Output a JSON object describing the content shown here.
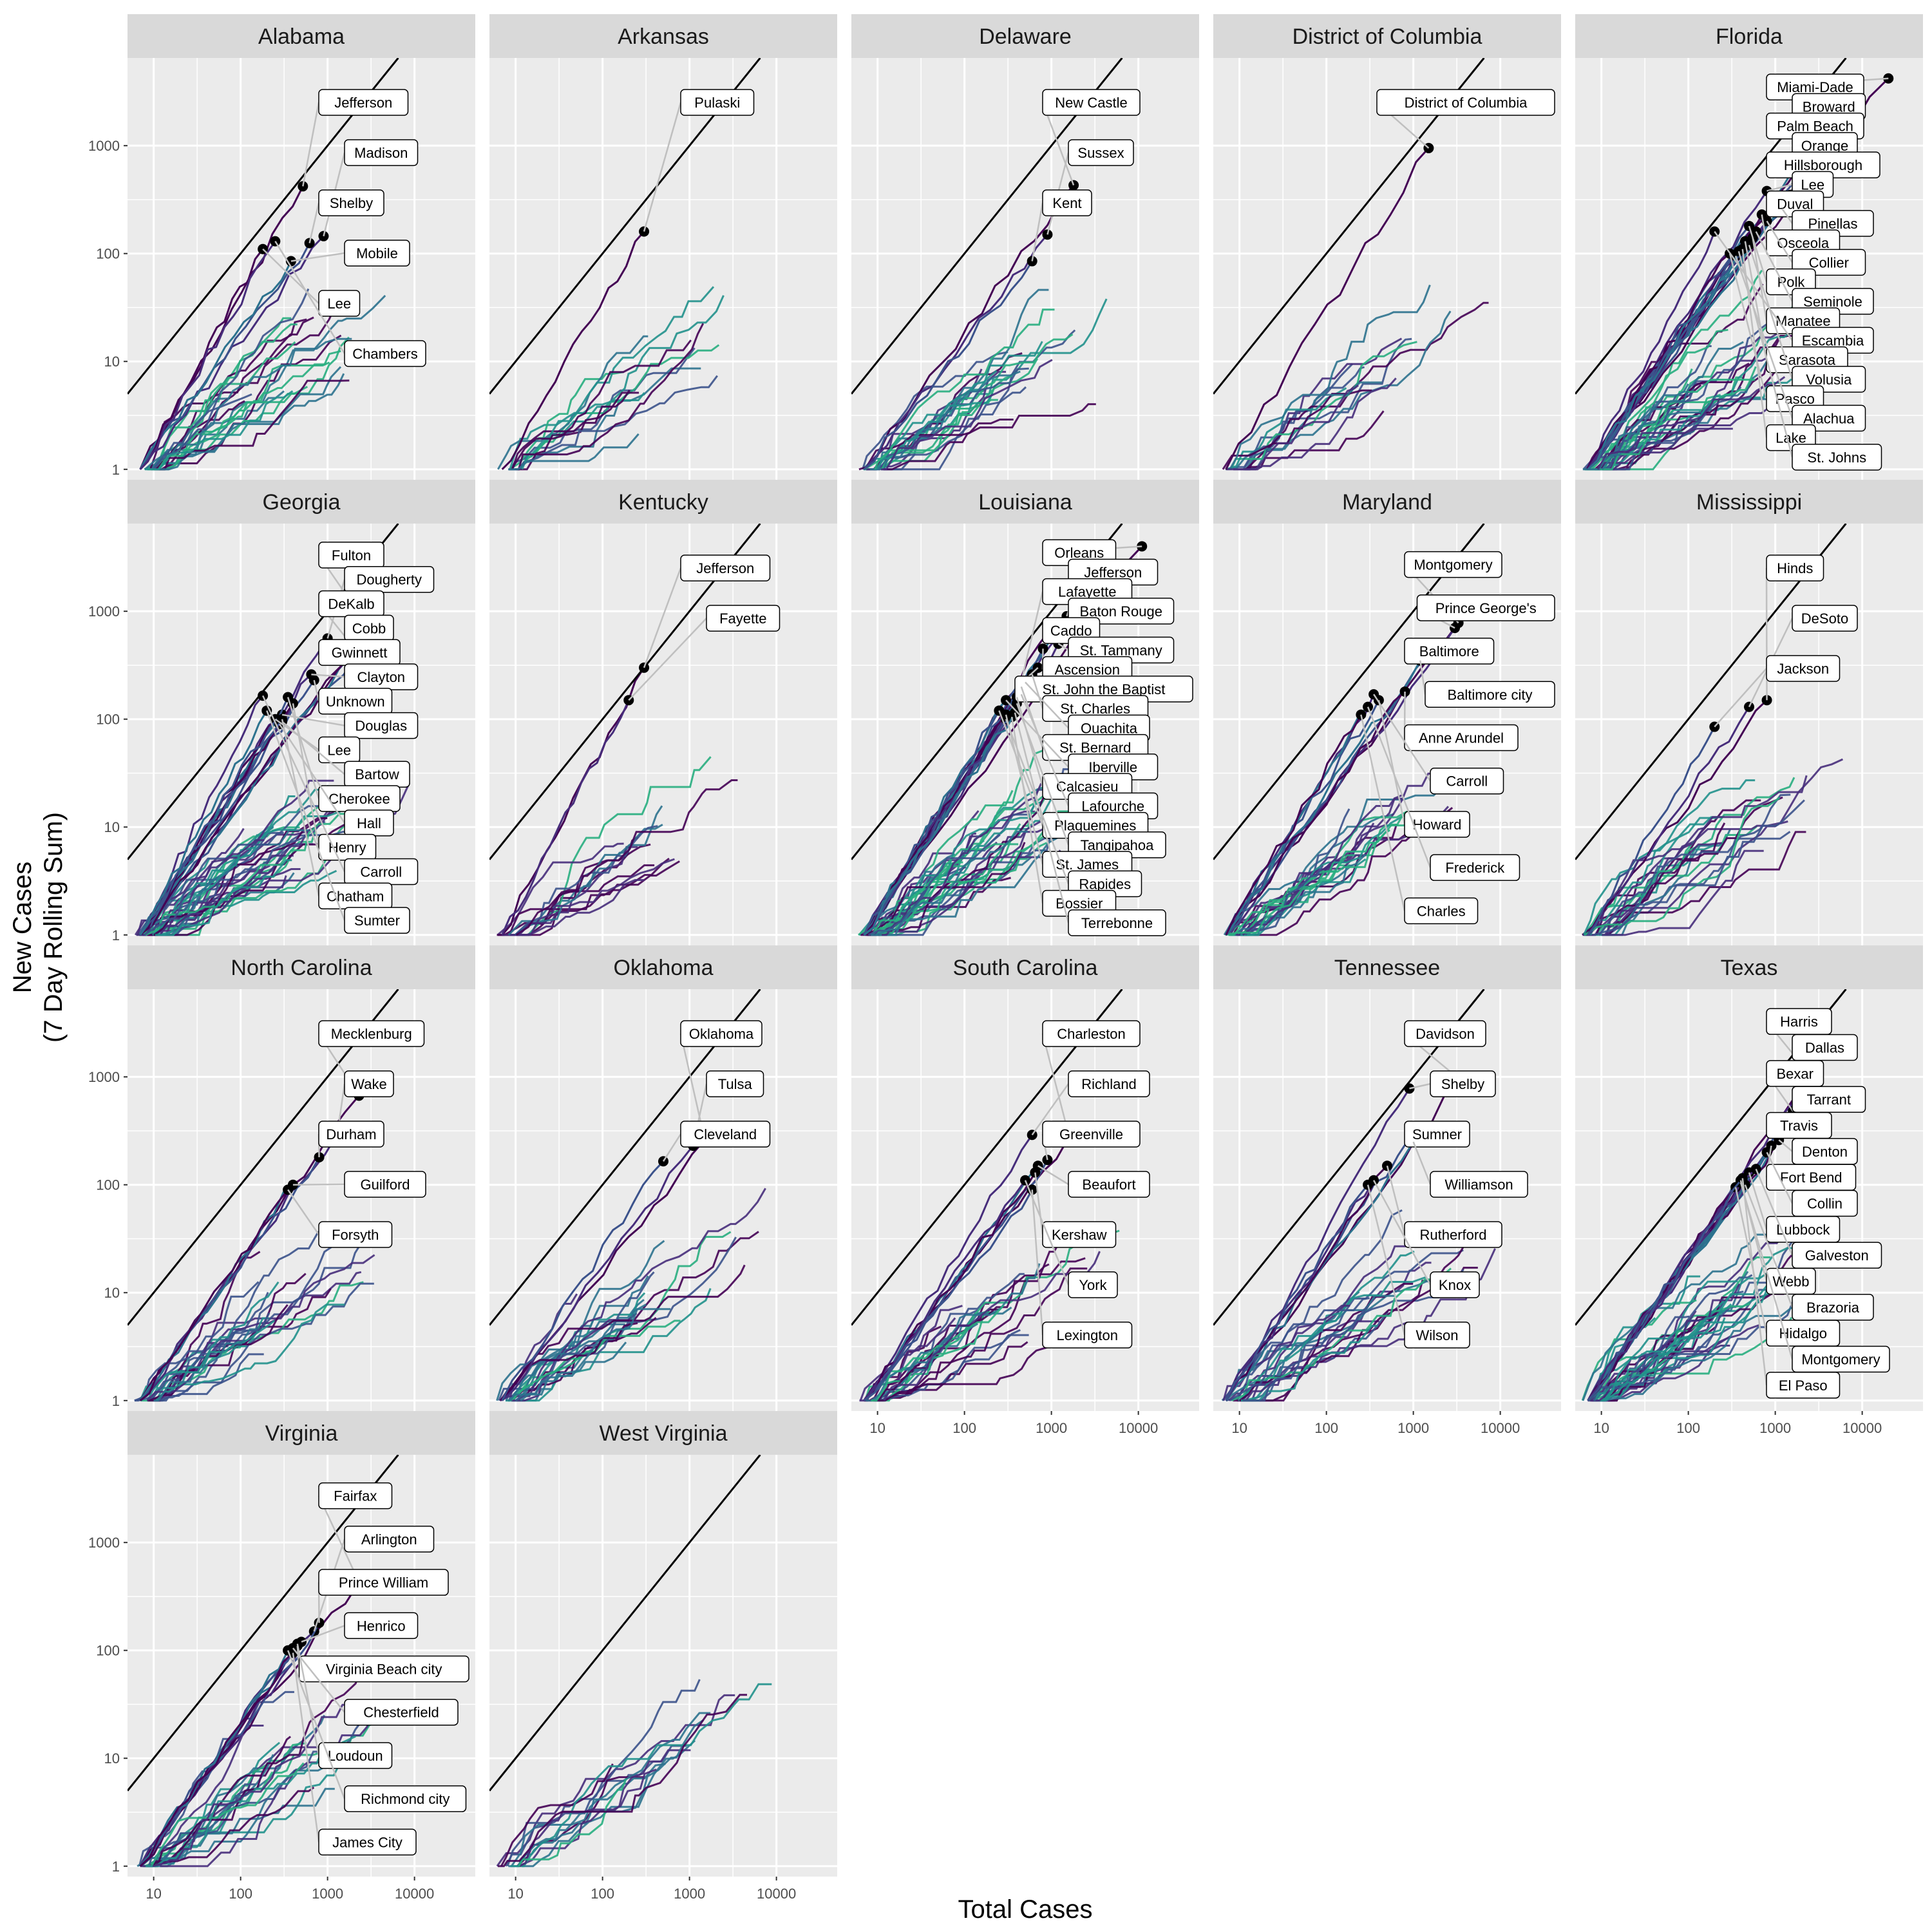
{
  "chart_data": {
    "type": "line",
    "xlabel": "Total Cases",
    "ylabel": [
      "New Cases",
      "(7 Day Rolling Sum)"
    ],
    "x_scale": "log10",
    "y_scale": "log10",
    "x_ticks": [
      "10",
      "100",
      "1000",
      "10000"
    ],
    "y_ticks": [
      "1",
      "10",
      "100",
      "1000"
    ],
    "xlim": [
      5,
      50000
    ],
    "ylim": [
      0.8,
      6500
    ],
    "reference_line": "y = x",
    "grid": true,
    "colors": {
      "panel_bg": "#ebebeb",
      "strip_bg": "#d9d9d9",
      "grid": "#ffffff",
      "reference": "#000000",
      "leader": "#bfbfbf",
      "palette": [
        "#440154",
        "#472d7b",
        "#3b528b",
        "#2c728e",
        "#21918c",
        "#28ae80"
      ]
    },
    "panels": [
      {
        "state": "Alabama",
        "counties": [
          {
            "name": "Jefferson",
            "x": 520,
            "y": 420
          },
          {
            "name": "Madison",
            "x": 900,
            "y": 145
          },
          {
            "name": "Shelby",
            "x": 620,
            "y": 125
          },
          {
            "name": "Mobile",
            "x": 380,
            "y": 85
          },
          {
            "name": "Lee",
            "x": 180,
            "y": 110
          },
          {
            "name": "Chambers",
            "x": 250,
            "y": 130
          }
        ]
      },
      {
        "state": "Arkansas",
        "counties": [
          {
            "name": "Pulaski",
            "x": 300,
            "y": 160
          }
        ]
      },
      {
        "state": "Delaware",
        "counties": [
          {
            "name": "New Castle",
            "x": 1800,
            "y": 430
          },
          {
            "name": "Sussex",
            "x": 900,
            "y": 150
          },
          {
            "name": "Kent",
            "x": 600,
            "y": 85
          }
        ]
      },
      {
        "state": "District of Columbia",
        "counties": [
          {
            "name": "District of Columbia",
            "x": 1500,
            "y": 950
          }
        ]
      },
      {
        "state": "Florida",
        "counties": [
          {
            "name": "Miami-Dade",
            "x": 20000,
            "y": 4200
          },
          {
            "name": "Broward",
            "x": 8000,
            "y": 2300
          },
          {
            "name": "Palm Beach",
            "x": 5000,
            "y": 1800
          },
          {
            "name": "Orange",
            "x": 2500,
            "y": 1000
          },
          {
            "name": "Hillsborough",
            "x": 2000,
            "y": 700
          },
          {
            "name": "Lee",
            "x": 800,
            "y": 380
          },
          {
            "name": "Duval",
            "x": 1500,
            "y": 350
          },
          {
            "name": "Pinellas",
            "x": 1200,
            "y": 260
          },
          {
            "name": "Osceola",
            "x": 700,
            "y": 230
          },
          {
            "name": "Collier",
            "x": 800,
            "y": 200
          },
          {
            "name": "Polk",
            "x": 500,
            "y": 180
          },
          {
            "name": "Seminole",
            "x": 600,
            "y": 160
          },
          {
            "name": "Manatee",
            "x": 550,
            "y": 140
          },
          {
            "name": "Escambia",
            "x": 200,
            "y": 160
          },
          {
            "name": "Sarasota",
            "x": 450,
            "y": 130
          },
          {
            "name": "Volusia",
            "x": 500,
            "y": 120
          },
          {
            "name": "Pasco",
            "x": 300,
            "y": 100
          },
          {
            "name": "Alachua",
            "x": 350,
            "y": 95
          },
          {
            "name": "Lake",
            "x": 420,
            "y": 110
          },
          {
            "name": "St. Johns",
            "x": 380,
            "y": 105
          }
        ]
      },
      {
        "state": "Georgia",
        "counties": [
          {
            "name": "Fulton",
            "x": 3000,
            "y": 700
          },
          {
            "name": "Dougherty",
            "x": 1000,
            "y": 560
          },
          {
            "name": "DeKalb",
            "x": 2200,
            "y": 420
          },
          {
            "name": "Cobb",
            "x": 1900,
            "y": 400
          },
          {
            "name": "Gwinnett",
            "x": 1800,
            "y": 380
          },
          {
            "name": "Clayton",
            "x": 650,
            "y": 260
          },
          {
            "name": "Unknown",
            "x": 700,
            "y": 230
          },
          {
            "name": "Douglas",
            "x": 300,
            "y": 110
          },
          {
            "name": "Lee",
            "x": 250,
            "y": 100
          },
          {
            "name": "Bartow",
            "x": 300,
            "y": 95
          },
          {
            "name": "Cherokee",
            "x": 350,
            "y": 160
          },
          {
            "name": "Hall",
            "x": 280,
            "y": 90
          },
          {
            "name": "Henry",
            "x": 400,
            "y": 140
          },
          {
            "name": "Carroll",
            "x": 180,
            "y": 165
          },
          {
            "name": "Chatham",
            "x": 300,
            "y": 100
          },
          {
            "name": "Sumter",
            "x": 200,
            "y": 120
          }
        ]
      },
      {
        "state": "Kentucky",
        "counties": [
          {
            "name": "Jefferson",
            "x": 300,
            "y": 300
          },
          {
            "name": "Fayette",
            "x": 200,
            "y": 150
          }
        ]
      },
      {
        "state": "Louisiana",
        "counties": [
          {
            "name": "Orleans",
            "x": 11000,
            "y": 4000
          },
          {
            "name": "Jefferson",
            "x": 4000,
            "y": 3000
          },
          {
            "name": "Lafayette",
            "x": 400,
            "y": 150
          },
          {
            "name": "Baton Rouge",
            "x": 1500,
            "y": 900
          },
          {
            "name": "Caddo",
            "x": 1000,
            "y": 700
          },
          {
            "name": "St. Tammany",
            "x": 1200,
            "y": 500
          },
          {
            "name": "Ascension",
            "x": 800,
            "y": 450
          },
          {
            "name": "St. John the Baptist",
            "x": 700,
            "y": 300
          },
          {
            "name": "St. Charles",
            "x": 600,
            "y": 260
          },
          {
            "name": "Ouachita",
            "x": 500,
            "y": 220
          },
          {
            "name": "St. Bernard",
            "x": 450,
            "y": 200
          },
          {
            "name": "Iberville",
            "x": 300,
            "y": 150
          },
          {
            "name": "Calcasieu",
            "x": 400,
            "y": 160
          },
          {
            "name": "Lafourche",
            "x": 450,
            "y": 170
          },
          {
            "name": "Plaquemines",
            "x": 250,
            "y": 120
          },
          {
            "name": "Tangipahoa",
            "x": 400,
            "y": 140
          },
          {
            "name": "St. James",
            "x": 300,
            "y": 110
          },
          {
            "name": "Rapides",
            "x": 300,
            "y": 100
          },
          {
            "name": "Bossier",
            "x": 350,
            "y": 105
          },
          {
            "name": "Terrebonne",
            "x": 380,
            "y": 115
          }
        ]
      },
      {
        "state": "Maryland",
        "counties": [
          {
            "name": "Montgomery",
            "x": 3300,
            "y": 780
          },
          {
            "name": "Prince George's",
            "x": 3000,
            "y": 700
          },
          {
            "name": "Baltimore",
            "x": 1500,
            "y": 400
          },
          {
            "name": "Baltimore city",
            "x": 1200,
            "y": 350
          },
          {
            "name": "Anne Arundel",
            "x": 800,
            "y": 180
          },
          {
            "name": "Carroll",
            "x": 350,
            "y": 170
          },
          {
            "name": "Howard",
            "x": 400,
            "y": 150
          },
          {
            "name": "Frederick",
            "x": 300,
            "y": 130
          },
          {
            "name": "Charles",
            "x": 250,
            "y": 110
          }
        ]
      },
      {
        "state": "Mississippi",
        "counties": [
          {
            "name": "Hinds",
            "x": 800,
            "y": 150
          },
          {
            "name": "DeSoto",
            "x": 500,
            "y": 130
          },
          {
            "name": "Jackson",
            "x": 200,
            "y": 85
          }
        ]
      },
      {
        "state": "North Carolina",
        "counties": [
          {
            "name": "Mecklenburg",
            "x": 2300,
            "y": 670
          },
          {
            "name": "Wake",
            "x": 1300,
            "y": 300
          },
          {
            "name": "Durham",
            "x": 800,
            "y": 180
          },
          {
            "name": "Guilford",
            "x": 400,
            "y": 100
          },
          {
            "name": "Forsyth",
            "x": 350,
            "y": 90
          }
        ]
      },
      {
        "state": "Oklahoma",
        "counties": [
          {
            "name": "Oklahoma",
            "x": 1500,
            "y": 260
          },
          {
            "name": "Tulsa",
            "x": 1100,
            "y": 230
          },
          {
            "name": "Cleveland",
            "x": 500,
            "y": 165
          }
        ]
      },
      {
        "state": "South Carolina",
        "counties": [
          {
            "name": "Charleston",
            "x": 1600,
            "y": 280
          },
          {
            "name": "Richland",
            "x": 600,
            "y": 290
          },
          {
            "name": "Greenville",
            "x": 900,
            "y": 170
          },
          {
            "name": "Beaufort",
            "x": 700,
            "y": 150
          },
          {
            "name": "Kershaw",
            "x": 650,
            "y": 130
          },
          {
            "name": "York",
            "x": 500,
            "y": 110
          },
          {
            "name": "Lexington",
            "x": 600,
            "y": 90
          }
        ]
      },
      {
        "state": "Tennessee",
        "counties": [
          {
            "name": "Davidson",
            "x": 3400,
            "y": 950
          },
          {
            "name": "Shelby",
            "x": 900,
            "y": 780
          },
          {
            "name": "Sumner",
            "x": 900,
            "y": 270
          },
          {
            "name": "Williamson",
            "x": 1000,
            "y": 250
          },
          {
            "name": "Rutherford",
            "x": 500,
            "y": 150
          },
          {
            "name": "Knox",
            "x": 350,
            "y": 110
          },
          {
            "name": "Wilson",
            "x": 300,
            "y": 100
          }
        ]
      },
      {
        "state": "Texas",
        "counties": [
          {
            "name": "Harris",
            "x": 2500,
            "y": 1050
          },
          {
            "name": "Dallas",
            "x": 2200,
            "y": 900
          },
          {
            "name": "Bexar",
            "x": 1600,
            "y": 480
          },
          {
            "name": "Tarrant",
            "x": 1800,
            "y": 420
          },
          {
            "name": "Travis",
            "x": 1500,
            "y": 360
          },
          {
            "name": "Denton",
            "x": 1100,
            "y": 260
          },
          {
            "name": "Fort Bend",
            "x": 900,
            "y": 230
          },
          {
            "name": "Collin",
            "x": 800,
            "y": 200
          },
          {
            "name": "Lubbock",
            "x": 500,
            "y": 130
          },
          {
            "name": "Galveston",
            "x": 600,
            "y": 140
          },
          {
            "name": "Webb",
            "x": 400,
            "y": 110
          },
          {
            "name": "Brazoria",
            "x": 450,
            "y": 100
          },
          {
            "name": "Hidalgo",
            "x": 350,
            "y": 95
          },
          {
            "name": "Montgomery",
            "x": 400,
            "y": 105
          },
          {
            "name": "El Paso",
            "x": 420,
            "y": 115
          }
        ]
      },
      {
        "state": "Virginia",
        "counties": [
          {
            "name": "Fairfax",
            "x": 2300,
            "y": 430
          },
          {
            "name": "Arlington",
            "x": 700,
            "y": 150
          },
          {
            "name": "Prince William",
            "x": 800,
            "y": 180
          },
          {
            "name": "Henrico",
            "x": 500,
            "y": 120
          },
          {
            "name": "Virginia Beach city",
            "x": 450,
            "y": 110
          },
          {
            "name": "Chesterfield",
            "x": 400,
            "y": 105
          },
          {
            "name": "Loudoun",
            "x": 450,
            "y": 115
          },
          {
            "name": "Richmond city",
            "x": 350,
            "y": 100
          },
          {
            "name": "James City",
            "x": 400,
            "y": 95
          }
        ]
      },
      {
        "state": "West Virginia",
        "counties": []
      }
    ]
  }
}
